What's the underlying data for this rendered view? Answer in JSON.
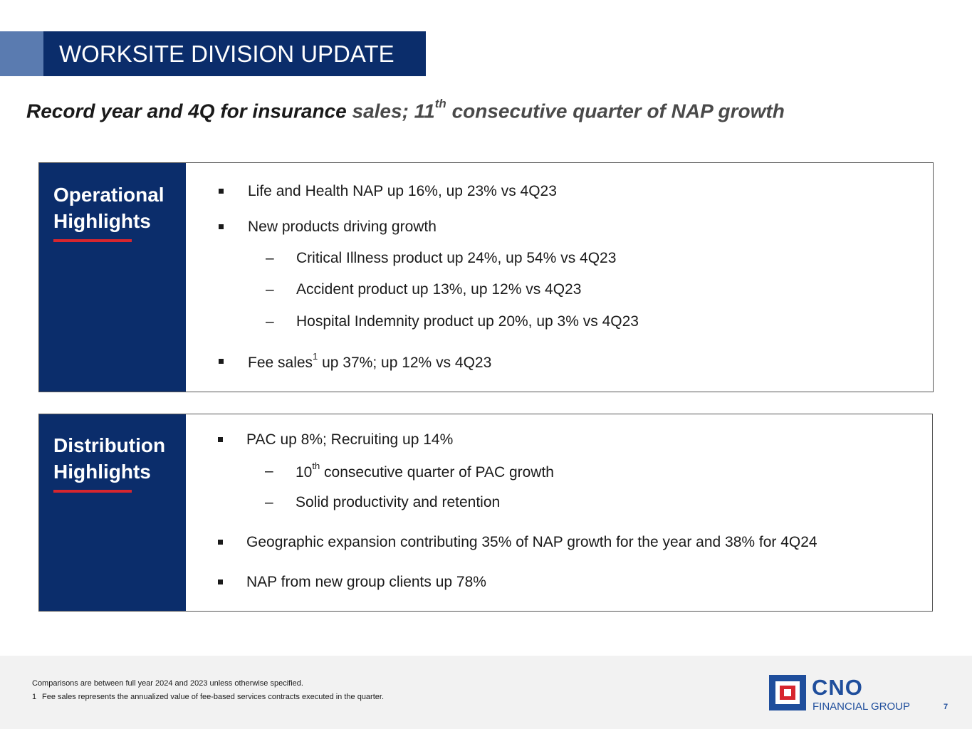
{
  "header": {
    "title": "WORKSITE DIVISION UPDATE"
  },
  "headline": {
    "part1": "Record year and 4Q for insurance ",
    "part2": "sales; 11",
    "sup": "th",
    "part3": " consecutive quarter of NAP growth"
  },
  "operational": {
    "title": "Operational\nHighlights",
    "items": [
      {
        "text": "Life and Health NAP up 16%, up 23% vs 4Q23"
      },
      {
        "text": "New products driving growth"
      },
      {
        "text": "Critical Illness product up 24%, up 54% vs 4Q23"
      },
      {
        "text": "Accident product up 13%, up 12% vs 4Q23"
      },
      {
        "text": "Hospital Indemnity product up 20%, up 3% vs 4Q23"
      },
      {
        "text_a": "Fee sales",
        "sup": "1",
        "text_b": " up 37%; up 12% vs 4Q23"
      }
    ]
  },
  "distribution": {
    "title": "Distribution\nHighlights",
    "items": [
      {
        "text": "PAC up 8%; Recruiting up 14%"
      },
      {
        "text_a": "10",
        "sup": "th",
        "text_b": " consecutive quarter of PAC growth"
      },
      {
        "text": "Solid productivity and retention"
      },
      {
        "text": "Geographic expansion contributing 35% of NAP growth for the year and 38% for 4Q24"
      },
      {
        "text": "NAP from new group clients up 78%"
      }
    ]
  },
  "footer": {
    "note": "Comparisons are between full year 2024 and 2023 unless otherwise specified.",
    "footnote_num": "1",
    "footnote": "Fee sales represents the annualized value of fee-based services contracts executed in the quarter.",
    "logo_name": "CNO",
    "logo_sub": "FINANCIAL GROUP",
    "page_number": "7"
  },
  "colors": {
    "navy": "#0b2d6b",
    "accent_blue": "#5a7bb0",
    "red": "#d7262e",
    "logo_blue": "#1f4e9c"
  }
}
